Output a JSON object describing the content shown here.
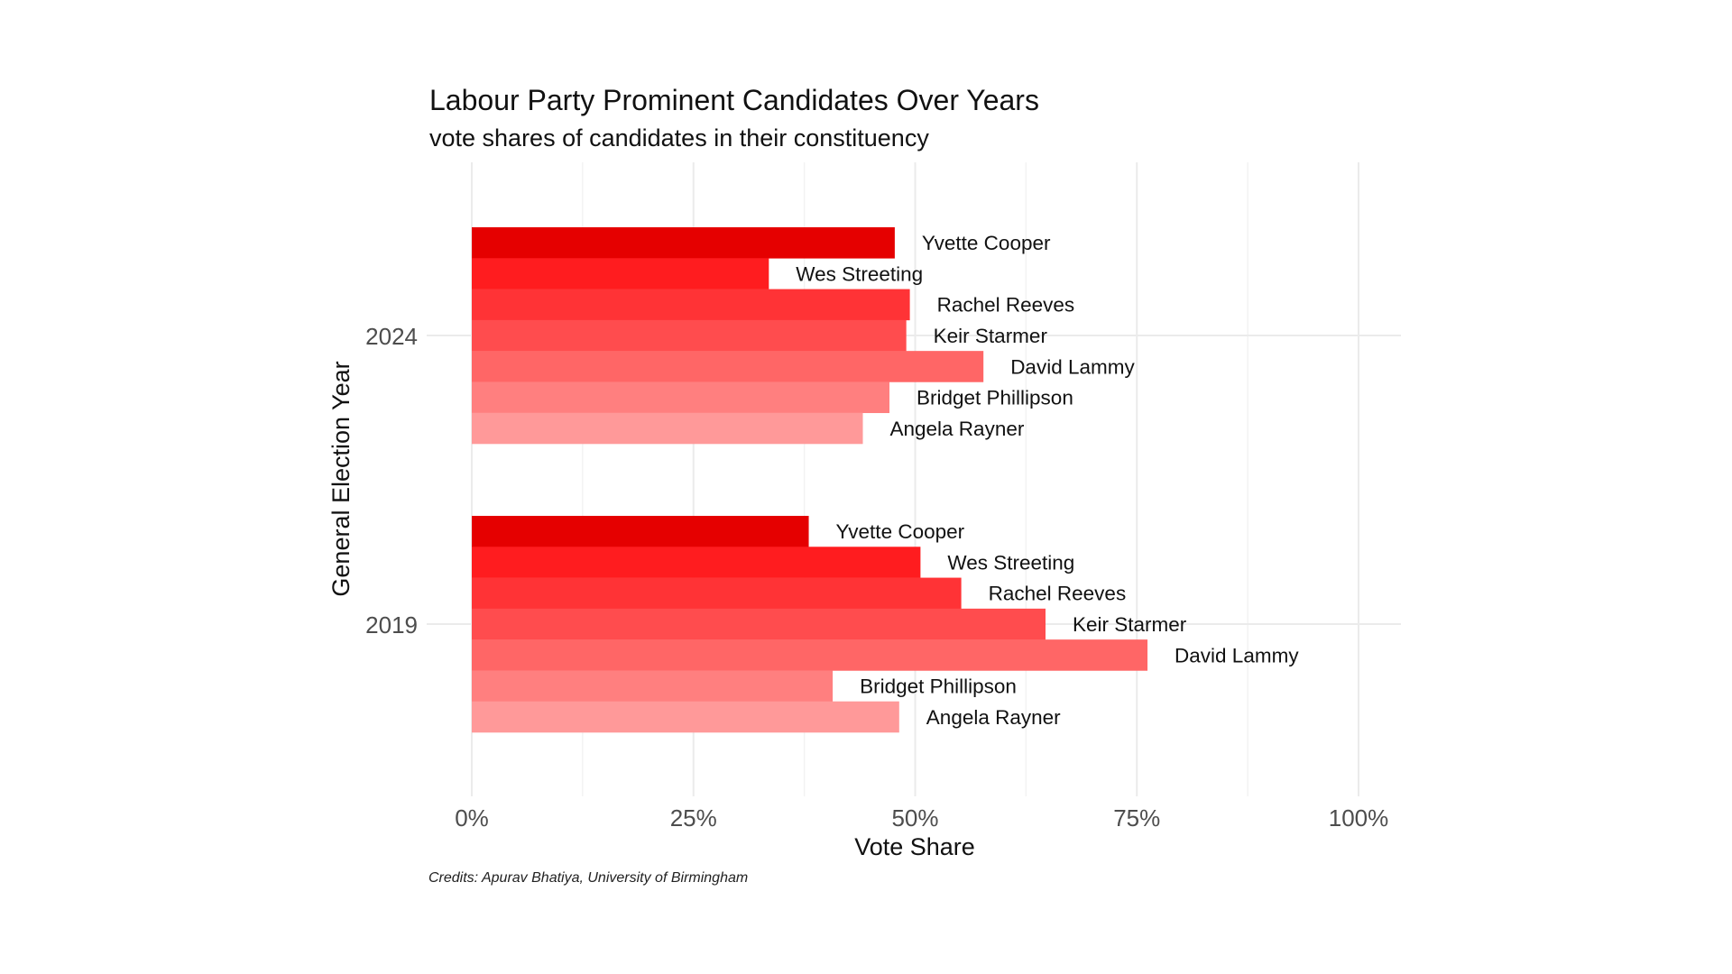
{
  "chart_data": {
    "type": "bar",
    "orientation": "horizontal",
    "title": "Labour Party Prominent Candidates Over Years",
    "subtitle": "vote shares of candidates in their constituency",
    "xlabel": "Vote Share",
    "ylabel": "General Election Year",
    "caption": "Credits: Apurav Bhatiya, University of Birmingham",
    "xlim": [
      0,
      100
    ],
    "x_ticks": [
      0,
      25,
      50,
      75,
      100
    ],
    "x_tick_labels": [
      "0%",
      "25%",
      "50%",
      "75%",
      "100%"
    ],
    "x_minor_ticks": [
      12.5,
      37.5,
      62.5,
      87.5
    ],
    "grid": true,
    "legend": "none",
    "categories": [
      "2024",
      "2019"
    ],
    "series": [
      {
        "name": "Yvette Cooper",
        "color": "#e50000",
        "values": [
          47.7,
          38.0
        ]
      },
      {
        "name": "Wes Streeting",
        "color": "#ff1c1f",
        "values": [
          33.5,
          50.6
        ]
      },
      {
        "name": "Rachel Reeves",
        "color": "#ff3336",
        "values": [
          49.4,
          55.2
        ]
      },
      {
        "name": "Keir Starmer",
        "color": "#ff4c4e",
        "values": [
          49.0,
          64.7
        ]
      },
      {
        "name": "David Lammy",
        "color": "#ff6666",
        "values": [
          57.7,
          76.2
        ]
      },
      {
        "name": "Bridget Phillipson",
        "color": "#ff7f7f",
        "values": [
          47.1,
          40.7
        ]
      },
      {
        "name": "Angela Rayner",
        "color": "#ff9999",
        "values": [
          44.1,
          48.2
        ]
      }
    ]
  }
}
